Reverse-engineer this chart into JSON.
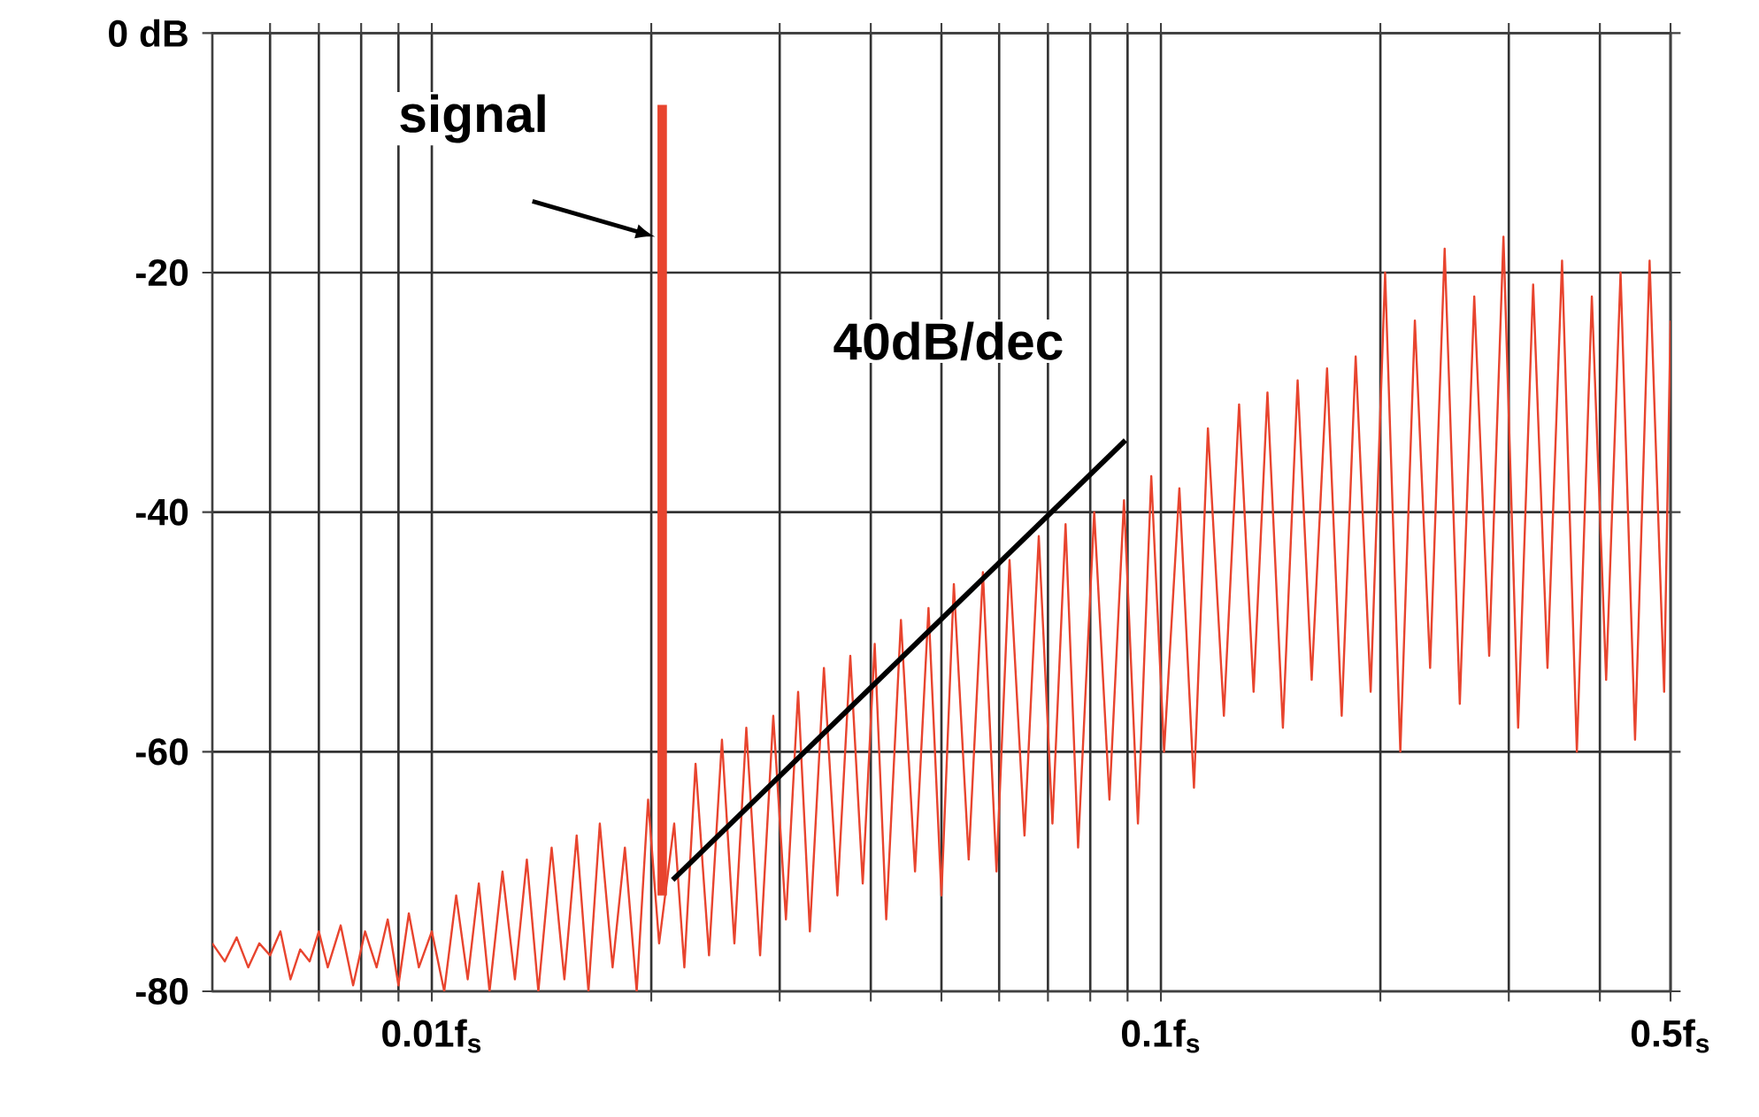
{
  "chart_data": {
    "type": "line",
    "log": "x",
    "grid": true,
    "xlim": [
      0.005,
      0.5
    ],
    "ylim": [
      -80,
      0
    ],
    "xticks": [
      {
        "value": 0.006,
        "label": null
      },
      {
        "value": 0.007,
        "label": null
      },
      {
        "value": 0.008,
        "label": null
      },
      {
        "value": 0.009,
        "label": null
      },
      {
        "value": 0.01,
        "label": "0.01f$_{s}$"
      },
      {
        "value": 0.02,
        "label": null
      },
      {
        "value": 0.03,
        "label": null
      },
      {
        "value": 0.04,
        "label": null
      },
      {
        "value": 0.05,
        "label": null
      },
      {
        "value": 0.06,
        "label": null
      },
      {
        "value": 0.07,
        "label": null
      },
      {
        "value": 0.08,
        "label": null
      },
      {
        "value": 0.09,
        "label": null
      },
      {
        "value": 0.1,
        "label": "0.1f$_{s}$"
      },
      {
        "value": 0.2,
        "label": null
      },
      {
        "value": 0.3,
        "label": null
      },
      {
        "value": 0.4,
        "label": null
      },
      {
        "value": 0.5,
        "label": "0.5f$_{s}$"
      }
    ],
    "yticks": [
      {
        "value": 0,
        "label": "0 dB"
      },
      -20,
      -40,
      -60,
      -80
    ],
    "annotations": [
      {
        "text": "signal",
        "x": 0.0207,
        "y": -17
      },
      {
        "text": "40dB/dec",
        "x": 0.0894,
        "y": -34
      }
    ],
    "series": [
      {
        "color": "#e8442e",
        "x": [
          0.005,
          0.0052,
          0.0054,
          0.0056,
          0.0058,
          0.006,
          0.0062,
          0.0064,
          0.0066,
          0.0068,
          0.007,
          0.0072,
          0.0075,
          0.0078,
          0.0081,
          0.0084,
          0.0087,
          0.009,
          0.0093,
          0.0096,
          0.01,
          0.0104,
          0.0108,
          0.0112,
          0.0116,
          0.012,
          0.0125,
          0.013,
          0.0135,
          0.014,
          0.0146,
          0.0152,
          0.0158,
          0.0164,
          0.017,
          0.0177,
          0.0184,
          0.0191,
          0.0198,
          0.0205,
          0.0215,
          0.0222,
          0.023,
          0.024,
          0.025,
          0.026,
          0.027,
          0.0282,
          0.0294,
          0.0306,
          0.0318,
          0.033,
          0.0345,
          0.036,
          0.0375,
          0.039,
          0.0405,
          0.042,
          0.044,
          0.046,
          0.048,
          0.05,
          0.052,
          0.0545,
          0.057,
          0.0595,
          0.062,
          0.065,
          0.068,
          0.071,
          0.074,
          0.077,
          0.081,
          0.085,
          0.089,
          0.093,
          0.097,
          0.101,
          0.106,
          0.111,
          0.116,
          0.122,
          0.128,
          0.134,
          0.14,
          0.147,
          0.154,
          0.161,
          0.169,
          0.177,
          0.185,
          0.194,
          0.203,
          0.213,
          0.223,
          0.234,
          0.245,
          0.257,
          0.269,
          0.282,
          0.295,
          0.309,
          0.324,
          0.339,
          0.355,
          0.372,
          0.39,
          0.408,
          0.427,
          0.447,
          0.468,
          0.49,
          0.5
        ],
        "values": [
          -76,
          -77.5,
          -75.5,
          -78,
          -76,
          -77,
          -75,
          -79,
          -76.5,
          -77.5,
          -75,
          -78,
          -74.5,
          -79.5,
          -75,
          -78,
          -74,
          -79.5,
          -73.5,
          -78,
          -75,
          -80,
          -72,
          -79,
          -71,
          -80,
          -70,
          -79,
          -69,
          -80,
          -68,
          -79,
          -67,
          -80,
          -66,
          -78,
          -68,
          -80,
          -64,
          -76,
          -66,
          -78,
          -61,
          -77,
          -59,
          -76,
          -58,
          -77,
          -57,
          -74,
          -55,
          -75,
          -53,
          -72,
          -52,
          -71,
          -51,
          -74,
          -49,
          -70,
          -48,
          -72,
          -46,
          -69,
          -45,
          -70,
          -44,
          -67,
          -42,
          -66,
          -41,
          -68,
          -40,
          -64,
          -39,
          -66,
          -37,
          -60,
          -38,
          -63,
          -33,
          -57,
          -31,
          -55,
          -30,
          -58,
          -29,
          -54,
          -28,
          -57,
          -27,
          -55,
          -20,
          -60,
          -24,
          -53,
          -18,
          -56,
          -22,
          -52,
          -17,
          -58,
          -21,
          -53,
          -19,
          -60,
          -22,
          -54,
          -20,
          -59,
          -19,
          -55,
          -24
        ]
      },
      {
        "color": "#e8442e",
        "x": [
          0.0207,
          0.0207
        ],
        "values": [
          -72,
          -6
        ]
      },
      {
        "color": "#000000",
        "x": [
          0.0214,
          0.0894
        ],
        "values": [
          -70.7,
          -34
        ]
      }
    ]
  }
}
